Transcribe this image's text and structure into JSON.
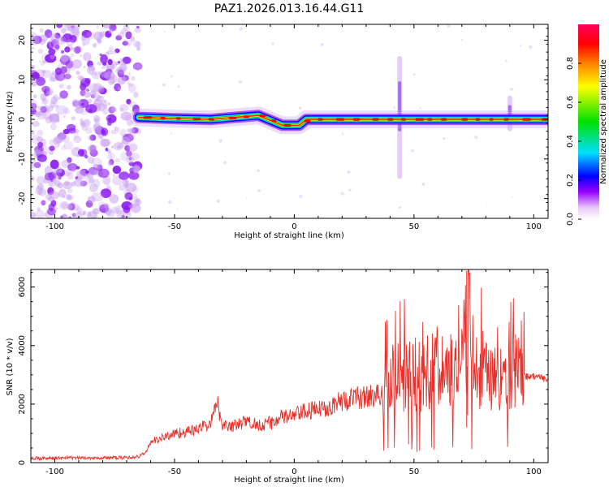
{
  "title": "PAZ1.2026.013.16.44.G11",
  "chart_data": [
    {
      "type": "heatmap",
      "xlabel": "Height of straight line (km)",
      "ylabel": "Frequency (Hz)",
      "xlim": [
        -110,
        106
      ],
      "ylim": [
        -25,
        24
      ],
      "x_ticks": [
        "-100",
        "-50",
        "0",
        "50",
        "100"
      ],
      "y_ticks": [
        "20",
        "10",
        "0",
        "-10",
        "-20"
      ],
      "colorbar": {
        "label": "Normalized spectral amplitude",
        "range": [
          0,
          1
        ],
        "ticks": [
          "0.0",
          "0.2",
          "0.4",
          "0.6",
          "0.8"
        ],
        "colors": [
          "#ffffff",
          "#e8c8f8",
          "#9a00ff",
          "#0000ff",
          "#00e0ff",
          "#00e000",
          "#ffff00",
          "#ff8000",
          "#ff0000",
          "#ff0060"
        ]
      },
      "noise_region_x": [
        -110,
        -65
      ],
      "ridge": [
        [
          -65,
          0.5
        ],
        [
          -50,
          0.2
        ],
        [
          -35,
          0.0
        ],
        [
          -25,
          0.5
        ],
        [
          -15,
          1.0
        ],
        [
          -5,
          -1.5
        ],
        [
          2,
          -1.5
        ],
        [
          5,
          0.0
        ],
        [
          30,
          0.0
        ],
        [
          45,
          0.0
        ],
        [
          55,
          0.0
        ],
        [
          70,
          0.0
        ],
        [
          90,
          0.0
        ],
        [
          95,
          0.0
        ],
        [
          106,
          0.0
        ]
      ],
      "features": [
        {
          "x": 44,
          "y_range": [
            -15,
            16
          ]
        },
        {
          "x": 90,
          "y_range": [
            -3,
            6
          ]
        }
      ]
    },
    {
      "type": "line",
      "xlabel": "Height of straight line (km)",
      "ylabel": "SNR (10 * v/v)",
      "xlim": [
        -110,
        106
      ],
      "ylim": [
        0,
        6600
      ],
      "x_ticks": [
        "-100",
        "-50",
        "0",
        "50",
        "100"
      ],
      "y_ticks": [
        "0",
        "2000",
        "4000",
        "6000"
      ],
      "color": "#e8302a",
      "series": [
        {
          "x": [
            -110,
            -90,
            -70,
            -65,
            -62,
            -60,
            -55,
            -50,
            -45,
            -40,
            -35,
            -32,
            -30,
            -25,
            -20,
            -15,
            -10,
            -5,
            0,
            5,
            10,
            15,
            20,
            25,
            30,
            35,
            38,
            40,
            45,
            50,
            55,
            60,
            65,
            70,
            72,
            75,
            80,
            85,
            90,
            95,
            100,
            106
          ],
          "y": [
            150,
            160,
            170,
            200,
            350,
            700,
            850,
            1000,
            1050,
            1150,
            1350,
            2000,
            1300,
            1250,
            1400,
            1300,
            1350,
            1550,
            1600,
            1750,
            1800,
            1950,
            2100,
            2200,
            2250,
            2300,
            2300,
            2800,
            2750,
            3000,
            2900,
            3300,
            3100,
            3200,
            6500,
            3200,
            3100,
            3000,
            3100,
            2950,
            2950,
            2850
          ]
        }
      ]
    }
  ]
}
